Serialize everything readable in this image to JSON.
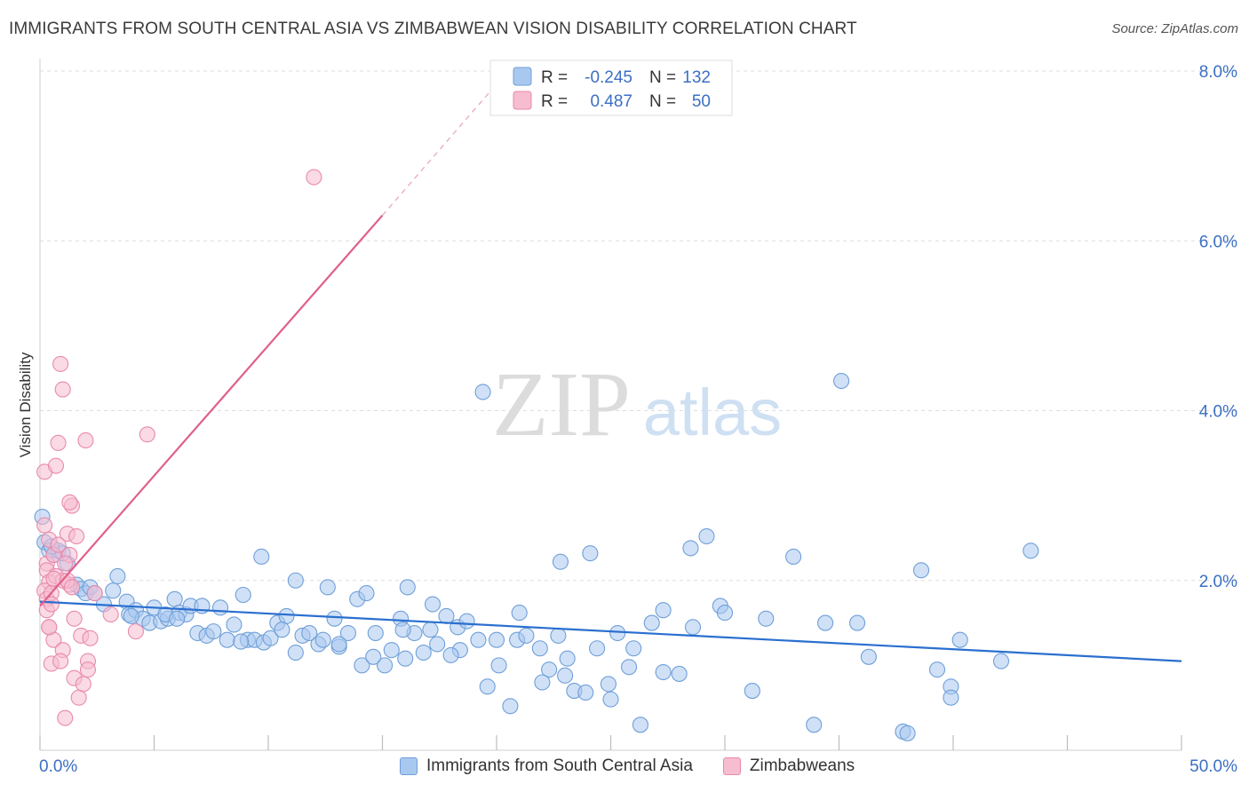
{
  "title": "IMMIGRANTS FROM SOUTH CENTRAL ASIA VS ZIMBABWEAN VISION DISABILITY CORRELATION CHART",
  "source": "Source: ZipAtlas.com",
  "watermark": {
    "zip": "ZIP",
    "atlas": "atlas"
  },
  "colors": {
    "blue_fill": "#a9c8f0",
    "blue_stroke": "#6f9fd8",
    "blue_line": "#2a6fcf",
    "pink_fill": "#f6bcd0",
    "pink_stroke": "#e88aac",
    "pink_line": "#e0608a",
    "axis_label": "#3b6fc4",
    "grid": "#dddddd"
  },
  "stats_legend": [
    {
      "r_label": "R = ",
      "r_value": "-0.245",
      "n_label": "N = ",
      "n_value": "132"
    },
    {
      "r_label": "R = ",
      "r_value": "0.487",
      "n_label": "N = ",
      "n_value": "50"
    }
  ],
  "chart_data": {
    "type": "scatter",
    "title": "IMMIGRANTS FROM SOUTH CENTRAL ASIA VS ZIMBABWEAN VISION DISABILITY CORRELATION CHART",
    "xlabel": "",
    "ylabel": "Vision Disability",
    "xlim": [
      0,
      50
    ],
    "ylim": [
      0,
      8.0
    ],
    "x_tick_labels": [
      "0.0%",
      "50.0%"
    ],
    "y_ticks": [
      2.0,
      4.0,
      6.0,
      8.0
    ],
    "y_tick_labels": [
      "2.0%",
      "4.0%",
      "6.0%",
      "8.0%"
    ],
    "grid": true,
    "legend_placement": "top-center",
    "series": [
      {
        "name": "Immigrants from South Central Asia",
        "color": "#a9c8f0",
        "trend": {
          "x": [
            0,
            50
          ],
          "y": [
            1.75,
            1.05
          ]
        },
        "points": [
          [
            0.1,
            2.75
          ],
          [
            0.2,
            2.45
          ],
          [
            0.4,
            2.35
          ],
          [
            0.6,
            2.3
          ],
          [
            0.8,
            2.35
          ],
          [
            1.2,
            2.2
          ],
          [
            1.6,
            1.95
          ],
          [
            1.8,
            1.9
          ],
          [
            2.0,
            1.85
          ],
          [
            2.2,
            1.92
          ],
          [
            2.8,
            1.72
          ],
          [
            3.2,
            1.88
          ],
          [
            3.4,
            2.05
          ],
          [
            3.8,
            1.75
          ],
          [
            3.9,
            1.6
          ],
          [
            4.2,
            1.65
          ],
          [
            4.5,
            1.55
          ],
          [
            4.8,
            1.5
          ],
          [
            5.0,
            1.68
          ],
          [
            5.3,
            1.52
          ],
          [
            5.6,
            1.55
          ],
          [
            5.9,
            1.78
          ],
          [
            6.1,
            1.62
          ],
          [
            6.4,
            1.6
          ],
          [
            6.6,
            1.7
          ],
          [
            6.9,
            1.38
          ],
          [
            7.1,
            1.7
          ],
          [
            7.3,
            1.35
          ],
          [
            7.6,
            1.4
          ],
          [
            7.9,
            1.68
          ],
          [
            8.2,
            1.3
          ],
          [
            8.5,
            1.48
          ],
          [
            8.9,
            1.83
          ],
          [
            9.1,
            1.3
          ],
          [
            9.4,
            1.3
          ],
          [
            9.8,
            1.27
          ],
          [
            10.1,
            1.32
          ],
          [
            10.4,
            1.5
          ],
          [
            10.8,
            1.58
          ],
          [
            11.2,
            1.15
          ],
          [
            11.5,
            1.35
          ],
          [
            11.8,
            1.38
          ],
          [
            12.2,
            1.25
          ],
          [
            12.6,
            1.92
          ],
          [
            12.9,
            1.55
          ],
          [
            13.1,
            1.22
          ],
          [
            13.5,
            1.38
          ],
          [
            13.9,
            1.78
          ],
          [
            14.3,
            1.85
          ],
          [
            14.7,
            1.38
          ],
          [
            15.1,
            1.0
          ],
          [
            15.4,
            1.18
          ],
          [
            15.8,
            1.55
          ],
          [
            16.1,
            1.92
          ],
          [
            16.4,
            1.38
          ],
          [
            16.8,
            1.15
          ],
          [
            17.1,
            1.42
          ],
          [
            17.4,
            1.25
          ],
          [
            17.8,
            1.58
          ],
          [
            18.3,
            1.45
          ],
          [
            18.7,
            1.52
          ],
          [
            19.2,
            1.3
          ],
          [
            19.6,
            0.75
          ],
          [
            20.1,
            1.0
          ],
          [
            20.6,
            0.52
          ],
          [
            20.9,
            1.3
          ],
          [
            21.3,
            1.35
          ],
          [
            21.9,
            1.2
          ],
          [
            22.3,
            0.95
          ],
          [
            22.7,
            1.35
          ],
          [
            23.1,
            1.08
          ],
          [
            23.4,
            0.7
          ],
          [
            23.9,
            0.68
          ],
          [
            24.4,
            1.2
          ],
          [
            24.9,
            0.78
          ],
          [
            25.3,
            1.38
          ],
          [
            25.8,
            0.98
          ],
          [
            26.3,
            0.3
          ],
          [
            26.8,
            1.5
          ],
          [
            27.3,
            0.92
          ],
          [
            28.6,
            1.45
          ],
          [
            29.8,
            1.7
          ],
          [
            31.2,
            0.7
          ],
          [
            31.8,
            1.55
          ],
          [
            33.9,
            0.3
          ],
          [
            35.8,
            1.5
          ],
          [
            36.3,
            1.1
          ],
          [
            37.8,
            0.22
          ],
          [
            39.3,
            0.95
          ],
          [
            39.9,
            0.75
          ],
          [
            40.3,
            1.3
          ],
          [
            42.1,
            1.05
          ],
          [
            14.1,
            1.0
          ],
          [
            18.4,
            1.18
          ],
          [
            26.0,
            1.2
          ],
          [
            30.0,
            1.62
          ],
          [
            13.1,
            1.25
          ],
          [
            19.4,
            4.22
          ],
          [
            35.1,
            4.35
          ],
          [
            33.0,
            2.28
          ],
          [
            29.2,
            2.52
          ],
          [
            28.5,
            2.38
          ],
          [
            24.1,
            2.32
          ],
          [
            22.8,
            2.22
          ],
          [
            21.0,
            1.62
          ],
          [
            17.2,
            1.72
          ],
          [
            16.0,
            1.08
          ],
          [
            9.7,
            2.28
          ],
          [
            11.2,
            2.0
          ],
          [
            27.3,
            1.65
          ],
          [
            34.4,
            1.5
          ],
          [
            38.0,
            0.2
          ],
          [
            39.9,
            0.62
          ],
          [
            38.6,
            2.12
          ],
          [
            43.4,
            2.35
          ],
          [
            1.0,
            2.32
          ],
          [
            0.5,
            2.4
          ],
          [
            2.4,
            1.85
          ],
          [
            4.0,
            1.58
          ],
          [
            5.5,
            1.6
          ],
          [
            6.0,
            1.55
          ],
          [
            8.8,
            1.28
          ],
          [
            10.6,
            1.42
          ],
          [
            12.4,
            1.3
          ],
          [
            14.6,
            1.1
          ],
          [
            15.9,
            1.42
          ],
          [
            18.0,
            1.12
          ],
          [
            20.0,
            1.3
          ],
          [
            22.0,
            0.8
          ],
          [
            23.0,
            0.88
          ],
          [
            25.0,
            0.6
          ],
          [
            28.0,
            0.9
          ]
        ]
      },
      {
        "name": "Zimbabweans",
        "color": "#f6bcd0",
        "trend": {
          "x": [
            0,
            15
          ],
          "y": [
            1.7,
            6.3
          ]
        },
        "trend_dashed": {
          "x": [
            15,
            20.5
          ],
          "y": [
            6.3,
            8.0
          ]
        },
        "points": [
          [
            0.2,
            3.28
          ],
          [
            0.2,
            2.65
          ],
          [
            0.3,
            2.2
          ],
          [
            0.3,
            2.12
          ],
          [
            0.4,
            1.98
          ],
          [
            0.2,
            1.88
          ],
          [
            0.3,
            1.78
          ],
          [
            0.3,
            1.65
          ],
          [
            0.4,
            1.45
          ],
          [
            0.5,
            1.02
          ],
          [
            0.6,
            2.3
          ],
          [
            0.7,
            2.05
          ],
          [
            0.5,
            1.85
          ],
          [
            0.6,
            1.3
          ],
          [
            0.7,
            3.35
          ],
          [
            0.8,
            3.62
          ],
          [
            0.9,
            4.55
          ],
          [
            1.0,
            4.25
          ],
          [
            1.0,
            1.18
          ],
          [
            1.1,
            0.38
          ],
          [
            1.2,
            2.55
          ],
          [
            1.3,
            2.3
          ],
          [
            1.3,
            1.95
          ],
          [
            1.4,
            2.88
          ],
          [
            1.5,
            1.55
          ],
          [
            1.5,
            0.85
          ],
          [
            1.6,
            2.52
          ],
          [
            1.7,
            0.62
          ],
          [
            1.8,
            1.35
          ],
          [
            1.9,
            0.78
          ],
          [
            2.0,
            3.65
          ],
          [
            2.1,
            1.05
          ],
          [
            2.1,
            0.95
          ],
          [
            2.2,
            1.32
          ],
          [
            2.4,
            1.85
          ],
          [
            3.1,
            1.6
          ],
          [
            4.2,
            1.4
          ],
          [
            4.7,
            3.72
          ],
          [
            12.0,
            6.75
          ],
          [
            0.4,
            2.48
          ],
          [
            0.8,
            2.42
          ],
          [
            1.0,
            2.0
          ],
          [
            0.6,
            2.02
          ],
          [
            1.2,
            2.0
          ],
          [
            0.5,
            1.72
          ],
          [
            1.4,
            1.92
          ],
          [
            0.9,
            1.05
          ],
          [
            0.4,
            1.45
          ],
          [
            1.1,
            2.2
          ],
          [
            1.3,
            2.92
          ]
        ]
      }
    ]
  }
}
